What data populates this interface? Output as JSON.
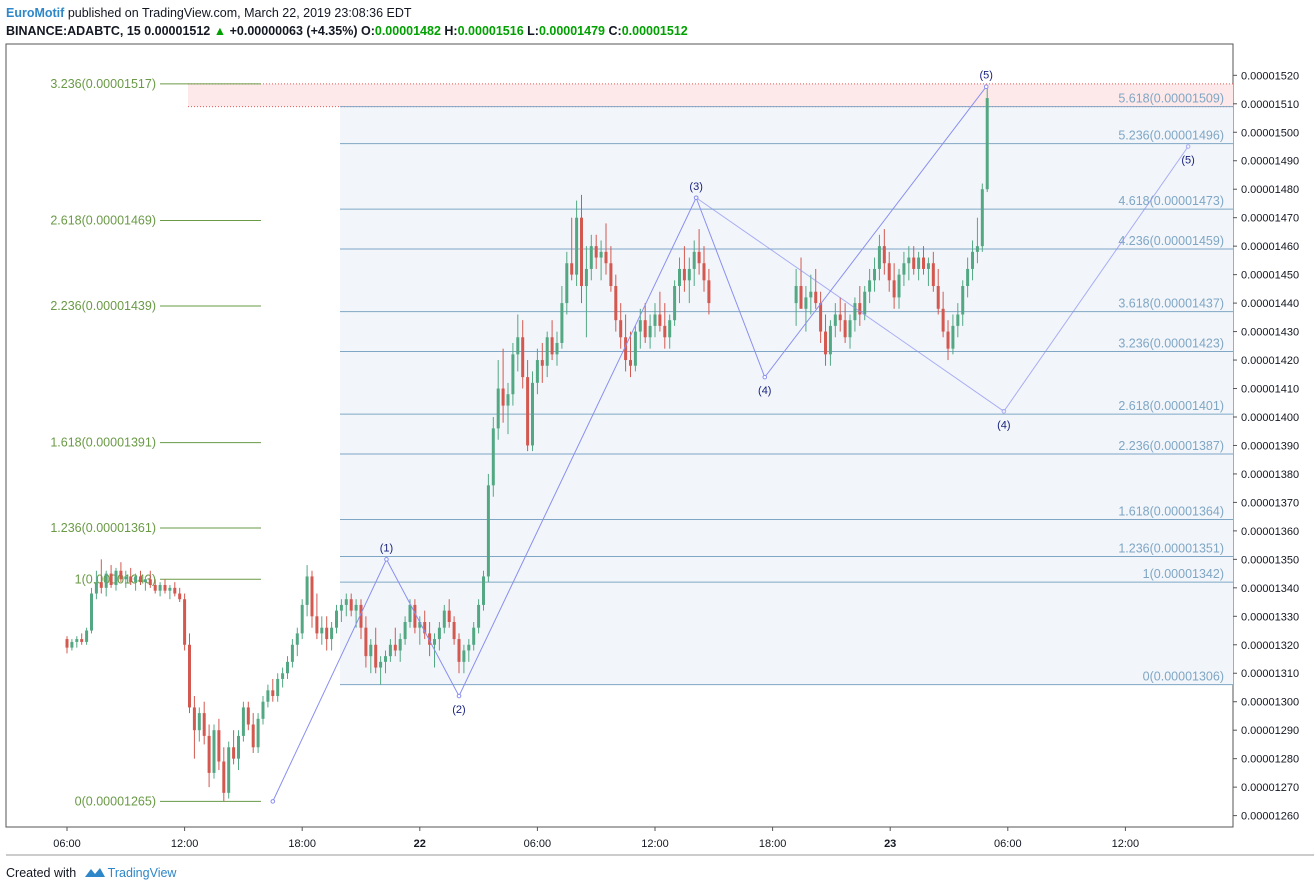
{
  "header": {
    "author": "EuroMotif",
    "published_text": "published on TradingView.com, March 22, 2019 23:08:36 EDT"
  },
  "ticker": {
    "symbol": "BINANCE:ADABTC, 15",
    "price": "0.00001512",
    "change": "+0.00000063 (+4.35%)",
    "open_label": "O:",
    "open": "0.00001482",
    "high_label": "H:",
    "high": "0.00001516",
    "low_label": "L:",
    "low": "0.00001479",
    "close_label": "C:",
    "close": "0.00001512"
  },
  "footer": {
    "created_with": "Created with",
    "brand": "TradingView"
  },
  "colors": {
    "up_candle": "#53a883",
    "down_candle": "#d3584f",
    "elliott": "#8a8fef",
    "fib_left": "#6a9a46",
    "fib_right": "#7fa6c4",
    "fill": "#f2f6fb",
    "target_zone": "#fde9ea"
  },
  "chart_data": {
    "type": "candlestick",
    "title": "",
    "x_ticks": [
      "06:00",
      "12:00",
      "18:00",
      "22",
      "06:00",
      "12:00",
      "18:00",
      "23",
      "06:00",
      "12:00"
    ],
    "bold_x_ticks": [
      "22",
      "23"
    ],
    "y_ticks": [
      "0.00001520",
      "0.00001510",
      "0.00001500",
      "0.00001490",
      "0.00001480",
      "0.00001470",
      "0.00001460",
      "0.00001450",
      "0.00001440",
      "0.00001430",
      "0.00001420",
      "0.00001410",
      "0.00001400",
      "0.00001390",
      "0.00001380",
      "0.00001370",
      "0.00001360",
      "0.00001350",
      "0.00001340",
      "0.00001330",
      "0.00001320",
      "0.00001310",
      "0.00001300",
      "0.00001290",
      "0.00001280",
      "0.00001270",
      "0.00001260"
    ],
    "ylim": [
      1.256e-05,
      1.531e-05
    ],
    "left_fib": [
      {
        "label": "3.236(0.00001517)",
        "value": 1.517e-05
      },
      {
        "label": "2.618(0.00001469)",
        "value": 1.469e-05
      },
      {
        "label": "2.236(0.00001439)",
        "value": 1.439e-05
      },
      {
        "label": "1.618(0.00001391)",
        "value": 1.391e-05
      },
      {
        "label": "1.236(0.00001361)",
        "value": 1.361e-05
      },
      {
        "label": "1(0.00001343)",
        "value": 1.343e-05
      },
      {
        "label": "0(0.00001265)",
        "value": 1.265e-05
      }
    ],
    "right_fib": [
      {
        "label": "5.618(0.00001509)",
        "value": 1.509e-05
      },
      {
        "label": "5.236(0.00001496)",
        "value": 1.496e-05
      },
      {
        "label": "4.618(0.00001473)",
        "value": 1.473e-05
      },
      {
        "label": "4.236(0.00001459)",
        "value": 1.459e-05
      },
      {
        "label": "3.618(0.00001437)",
        "value": 1.437e-05
      },
      {
        "label": "3.236(0.00001423)",
        "value": 1.423e-05
      },
      {
        "label": "2.618(0.00001401)",
        "value": 1.401e-05
      },
      {
        "label": "2.236(0.00001387)",
        "value": 1.387e-05
      },
      {
        "label": "1.618(0.00001364)",
        "value": 1.364e-05
      },
      {
        "label": "1.236(0.00001351)",
        "value": 1.351e-05
      },
      {
        "label": "1(0.00001342)",
        "value": 1.342e-05
      },
      {
        "label": "0(0.00001306)",
        "value": 1.306e-05
      }
    ],
    "elliott_main": [
      {
        "label": "",
        "t": 10.5,
        "value": 1.265e-05
      },
      {
        "label": "(1)",
        "t": 16.3,
        "value": 1.35e-05
      },
      {
        "label": "(2)",
        "t": 20.0,
        "value": 1.302e-05
      },
      {
        "label": "(3)",
        "t": 32.1,
        "value": 1.477e-05
      },
      {
        "label": "(4)",
        "t": 35.6,
        "value": 1.414e-05
      },
      {
        "label": "(5)",
        "t": 46.9,
        "value": 1.516e-05
      }
    ],
    "elliott_projection": [
      {
        "label": "",
        "t": 32.1,
        "value": 1.477e-05
      },
      {
        "label": "(4)",
        "t": 47.8,
        "value": 1.402e-05
      },
      {
        "label": "(5)",
        "t": 57.2,
        "value": 1.495e-05
      }
    ],
    "candles": [
      [
        0.0,
        1322,
        1323,
        1317,
        1319
      ],
      [
        0.25,
        1319,
        1322,
        1318,
        1321
      ],
      [
        0.5,
        1321,
        1323,
        1319,
        1322
      ],
      [
        0.75,
        1322,
        1324,
        1320,
        1321
      ],
      [
        1.0,
        1321,
        1326,
        1320,
        1325
      ],
      [
        1.25,
        1325,
        1340,
        1324,
        1338
      ],
      [
        1.5,
        1338,
        1346,
        1336,
        1342
      ],
      [
        1.75,
        1342,
        1350,
        1338,
        1340
      ],
      [
        2.0,
        1340,
        1346,
        1337,
        1345
      ],
      [
        2.25,
        1345,
        1348,
        1340,
        1341
      ],
      [
        2.5,
        1341,
        1347,
        1339,
        1346
      ],
      [
        2.75,
        1346,
        1349,
        1342,
        1343
      ],
      [
        3.0,
        1343,
        1346,
        1340,
        1344
      ],
      [
        3.25,
        1344,
        1347,
        1341,
        1342
      ],
      [
        3.5,
        1342,
        1345,
        1339,
        1344
      ],
      [
        3.75,
        1344,
        1346,
        1341,
        1342
      ],
      [
        4.0,
        1342,
        1344,
        1339,
        1343
      ],
      [
        4.25,
        1343,
        1346,
        1340,
        1341
      ],
      [
        4.5,
        1341,
        1343,
        1338,
        1339
      ],
      [
        4.75,
        1339,
        1342,
        1337,
        1341
      ],
      [
        5.0,
        1341,
        1343,
        1338,
        1339
      ],
      [
        5.25,
        1339,
        1341,
        1336,
        1340
      ],
      [
        5.5,
        1340,
        1342,
        1337,
        1338
      ],
      [
        5.75,
        1338,
        1340,
        1335,
        1336
      ],
      [
        6.0,
        1336,
        1338,
        1318,
        1320
      ],
      [
        6.25,
        1320,
        1324,
        1296,
        1298
      ],
      [
        6.5,
        1298,
        1302,
        1280,
        1290
      ],
      [
        6.75,
        1290,
        1298,
        1286,
        1296
      ],
      [
        7.0,
        1296,
        1300,
        1285,
        1288
      ],
      [
        7.25,
        1288,
        1292,
        1270,
        1275
      ],
      [
        7.5,
        1275,
        1292,
        1273,
        1290
      ],
      [
        7.75,
        1290,
        1294,
        1276,
        1279
      ],
      [
        8.0,
        1279,
        1284,
        1265,
        1268
      ],
      [
        8.25,
        1268,
        1286,
        1266,
        1284
      ],
      [
        8.5,
        1284,
        1290,
        1278,
        1280
      ],
      [
        8.75,
        1280,
        1290,
        1276,
        1288
      ],
      [
        9.0,
        1288,
        1300,
        1286,
        1298
      ],
      [
        9.25,
        1298,
        1300,
        1290,
        1292
      ],
      [
        9.5,
        1292,
        1296,
        1282,
        1284
      ],
      [
        9.75,
        1284,
        1296,
        1282,
        1294
      ],
      [
        10.0,
        1294,
        1302,
        1292,
        1300
      ],
      [
        10.25,
        1300,
        1306,
        1298,
        1304
      ],
      [
        10.5,
        1304,
        1308,
        1300,
        1302
      ],
      [
        10.75,
        1302,
        1310,
        1300,
        1308
      ],
      [
        11.0,
        1308,
        1312,
        1305,
        1310
      ],
      [
        11.25,
        1310,
        1316,
        1308,
        1314
      ],
      [
        11.5,
        1314,
        1322,
        1312,
        1320
      ],
      [
        11.75,
        1320,
        1326,
        1316,
        1324
      ],
      [
        12.0,
        1324,
        1336,
        1322,
        1334
      ],
      [
        12.25,
        1334,
        1348,
        1330,
        1344
      ],
      [
        12.5,
        1344,
        1346,
        1326,
        1330
      ],
      [
        12.75,
        1330,
        1338,
        1322,
        1324
      ],
      [
        13.0,
        1324,
        1330,
        1320,
        1326
      ],
      [
        13.25,
        1326,
        1330,
        1318,
        1322
      ],
      [
        13.5,
        1322,
        1328,
        1318,
        1326
      ],
      [
        13.75,
        1326,
        1334,
        1324,
        1332
      ],
      [
        14.0,
        1332,
        1336,
        1328,
        1334
      ],
      [
        14.25,
        1334,
        1338,
        1330,
        1336
      ],
      [
        14.5,
        1336,
        1338,
        1330,
        1332
      ],
      [
        14.75,
        1332,
        1336,
        1326,
        1334
      ],
      [
        15.0,
        1334,
        1336,
        1322,
        1326
      ],
      [
        15.25,
        1326,
        1330,
        1312,
        1316
      ],
      [
        15.5,
        1316,
        1322,
        1310,
        1320
      ],
      [
        15.75,
        1320,
        1326,
        1310,
        1312
      ],
      [
        16.0,
        1312,
        1316,
        1306,
        1314
      ],
      [
        16.25,
        1314,
        1318,
        1310,
        1316
      ],
      [
        16.5,
        1316,
        1322,
        1314,
        1320
      ],
      [
        16.75,
        1320,
        1326,
        1316,
        1318
      ],
      [
        17.0,
        1318,
        1324,
        1314,
        1322
      ],
      [
        17.25,
        1322,
        1330,
        1320,
        1328
      ],
      [
        17.5,
        1328,
        1336,
        1326,
        1334
      ],
      [
        17.75,
        1334,
        1336,
        1324,
        1326
      ],
      [
        18.0,
        1326,
        1330,
        1320,
        1328
      ],
      [
        18.25,
        1328,
        1332,
        1322,
        1324
      ],
      [
        18.5,
        1324,
        1328,
        1316,
        1320
      ],
      [
        18.75,
        1320,
        1324,
        1312,
        1322
      ],
      [
        19.0,
        1322,
        1328,
        1318,
        1326
      ],
      [
        19.25,
        1326,
        1334,
        1324,
        1332
      ],
      [
        19.5,
        1332,
        1336,
        1326,
        1328
      ],
      [
        19.75,
        1328,
        1330,
        1320,
        1322
      ],
      [
        20.0,
        1322,
        1324,
        1310,
        1314
      ],
      [
        20.25,
        1314,
        1320,
        1310,
        1318
      ],
      [
        20.5,
        1318,
        1322,
        1314,
        1320
      ],
      [
        20.75,
        1320,
        1328,
        1318,
        1326
      ],
      [
        21.0,
        1326,
        1336,
        1324,
        1334
      ],
      [
        21.25,
        1334,
        1346,
        1332,
        1344
      ],
      [
        21.5,
        1344,
        1380,
        1342,
        1376
      ],
      [
        21.75,
        1376,
        1400,
        1372,
        1396
      ],
      [
        22.0,
        1396,
        1420,
        1392,
        1410
      ],
      [
        22.25,
        1410,
        1424,
        1398,
        1404
      ],
      [
        22.5,
        1404,
        1412,
        1394,
        1408
      ],
      [
        22.75,
        1408,
        1426,
        1404,
        1422
      ],
      [
        23.0,
        1422,
        1436,
        1416,
        1428
      ],
      [
        23.25,
        1428,
        1434,
        1410,
        1414
      ],
      [
        23.5,
        1414,
        1420,
        1388,
        1390
      ],
      [
        23.75,
        1390,
        1416,
        1388,
        1412
      ],
      [
        24.0,
        1412,
        1424,
        1408,
        1420
      ],
      [
        24.25,
        1420,
        1426,
        1412,
        1418
      ],
      [
        24.5,
        1418,
        1430,
        1414,
        1428
      ],
      [
        24.75,
        1428,
        1434,
        1420,
        1422
      ],
      [
        25.0,
        1422,
        1430,
        1418,
        1426
      ],
      [
        25.25,
        1426,
        1446,
        1424,
        1440
      ],
      [
        25.5,
        1440,
        1458,
        1436,
        1454
      ],
      [
        25.75,
        1454,
        1470,
        1448,
        1450
      ],
      [
        26.0,
        1450,
        1476,
        1446,
        1470
      ],
      [
        26.25,
        1470,
        1478,
        1440,
        1446
      ],
      [
        26.5,
        1446,
        1460,
        1428,
        1452
      ],
      [
        26.75,
        1452,
        1464,
        1448,
        1460
      ],
      [
        27.0,
        1460,
        1464,
        1452,
        1456
      ],
      [
        27.25,
        1456,
        1462,
        1448,
        1458
      ],
      [
        27.5,
        1458,
        1468,
        1450,
        1454
      ],
      [
        27.75,
        1454,
        1460,
        1444,
        1446
      ],
      [
        28.0,
        1446,
        1450,
        1430,
        1434
      ],
      [
        28.25,
        1434,
        1440,
        1424,
        1428
      ],
      [
        28.5,
        1428,
        1436,
        1416,
        1420
      ],
      [
        28.75,
        1420,
        1430,
        1414,
        1418
      ],
      [
        29.0,
        1418,
        1432,
        1416,
        1430
      ],
      [
        29.25,
        1430,
        1438,
        1424,
        1434
      ],
      [
        29.5,
        1434,
        1440,
        1426,
        1428
      ],
      [
        29.75,
        1428,
        1436,
        1424,
        1432
      ],
      [
        30.0,
        1432,
        1440,
        1428,
        1436
      ],
      [
        30.25,
        1436,
        1444,
        1430,
        1432
      ],
      [
        30.5,
        1432,
        1440,
        1424,
        1428
      ],
      [
        30.75,
        1428,
        1436,
        1424,
        1434
      ],
      [
        31.0,
        1434,
        1448,
        1432,
        1446
      ],
      [
        31.25,
        1446,
        1456,
        1440,
        1452
      ],
      [
        31.5,
        1452,
        1460,
        1444,
        1448
      ],
      [
        31.75,
        1448,
        1456,
        1440,
        1452
      ],
      [
        32.0,
        1452,
        1462,
        1446,
        1458
      ],
      [
        32.25,
        1458,
        1466,
        1450,
        1454
      ],
      [
        32.5,
        1454,
        1460,
        1444,
        1448
      ],
      [
        32.75,
        1448,
        1452,
        1436,
        1440
      ]
    ]
  }
}
